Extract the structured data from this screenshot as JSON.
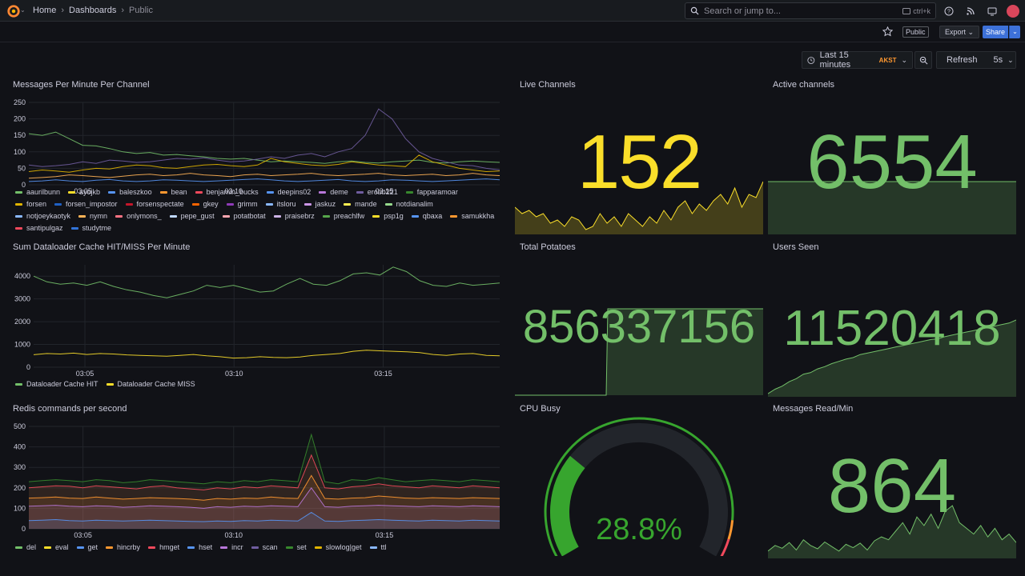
{
  "breadcrumbs": {
    "home": "Home",
    "dashboards": "Dashboards",
    "current": "Public"
  },
  "search": {
    "placeholder": "Search or jump to...",
    "shortcut": "ctrl+k"
  },
  "toolbar": {
    "public_badge": "Public",
    "export_label": "Export",
    "share_label": "Share"
  },
  "timepicker": {
    "range": "Last 15 minutes",
    "timezone": "AKST",
    "refresh_label": "Refresh",
    "interval": "5s"
  },
  "colors": {
    "green": "#73bf69",
    "yellow": "#fade2a",
    "bg": "#111217"
  },
  "panels": {
    "messages": {
      "title": "Messages Per Minute Per Channel"
    },
    "live": {
      "title": "Live Channels",
      "value": "152"
    },
    "active": {
      "title": "Active channels",
      "value": "6554"
    },
    "dataloader": {
      "title": "Sum Dataloader Cache HIT/MISS Per Minute"
    },
    "potatoes": {
      "title": "Total Potatoes",
      "value": "856337156"
    },
    "users": {
      "title": "Users Seen",
      "value": "11520418"
    },
    "redis": {
      "title": "Redis commands per second"
    },
    "cpu": {
      "title": "CPU Busy",
      "value": "28.8%",
      "fraction": 0.288
    },
    "readmin": {
      "title": "Messages Read/Min",
      "value": "864"
    }
  },
  "chart_data": [
    {
      "type": "line",
      "id": "messages",
      "title": "Messages Per Minute Per Channel",
      "xticks": [
        "03:05",
        "03:10",
        "03:15"
      ],
      "yticks": [
        0,
        50,
        100,
        150,
        200,
        250
      ],
      "ylim": [
        0,
        250
      ],
      "legend": [
        "aaurilbunn",
        "ayojkb",
        "baleszkoo",
        "bean",
        "benjamin_bucks",
        "deepins02",
        "deme",
        "erobb221",
        "fapparamoar",
        "forsen",
        "forsen_impostor",
        "forsenspectate",
        "gkey",
        "grimm",
        "itsloru",
        "jaskuz",
        "mande",
        "notdianalim",
        "notjoeykaotyk",
        "nymn",
        "onlymons_",
        "pepe_gust",
        "potatbotat",
        "praisebrz",
        "preachlfw",
        "psp1g",
        "qbaxa",
        "samukkha",
        "santipulgaz",
        "studytme"
      ],
      "legend_colors": [
        "#73bf69",
        "#fade2a",
        "#5794f2",
        "#ff9830",
        "#f2495c",
        "#5794f2",
        "#b877d9",
        "#705da0",
        "#37872d",
        "#e0b400",
        "#1f60c4",
        "#c4162a",
        "#fa6400",
        "#8f3bb8",
        "#8ab8ff",
        "#ca95e5",
        "#ffee52",
        "#96d98d",
        "#8ab8ff",
        "#ffb357",
        "#ff7383",
        "#c0d8ff",
        "#ffa6b0",
        "#cdb3e6",
        "#56a64b",
        "#fade2a",
        "#5794f2",
        "#ff9830",
        "#f2495c",
        "#3274d9"
      ],
      "series": [
        {
          "name": "aaurilbunn",
          "values": [
            155,
            150,
            160,
            140,
            120,
            118,
            110,
            100,
            95,
            98,
            90,
            92,
            88,
            85,
            80,
            78,
            80,
            75,
            70,
            72,
            70,
            68,
            65,
            70,
            72,
            68,
            66,
            70,
            72,
            75,
            68,
            66,
            70,
            72,
            70,
            68
          ]
        },
        {
          "name": "erobb221",
          "values": [
            60,
            55,
            58,
            62,
            70,
            65,
            75,
            72,
            68,
            70,
            75,
            80,
            78,
            82,
            75,
            70,
            72,
            78,
            85,
            80,
            90,
            95,
            85,
            100,
            110,
            150,
            230,
            200,
            140,
            100,
            80,
            70,
            60,
            58,
            50,
            45
          ]
        },
        {
          "name": "forsen",
          "values": [
            40,
            45,
            42,
            38,
            45,
            50,
            48,
            55,
            60,
            58,
            52,
            50,
            55,
            60,
            62,
            58,
            55,
            60,
            80,
            70,
            65,
            60,
            58,
            62,
            70,
            65,
            60,
            58,
            55,
            90,
            70,
            60,
            50,
            45,
            40,
            42
          ]
        },
        {
          "name": "nymn",
          "values": [
            20,
            22,
            25,
            30,
            28,
            25,
            22,
            26,
            30,
            32,
            28,
            30,
            35,
            30,
            28,
            25,
            30,
            32,
            28,
            30,
            32,
            35,
            30,
            28,
            30,
            32,
            35,
            30,
            28,
            30,
            32,
            28,
            30,
            35,
            30,
            28
          ]
        },
        {
          "name": "baleszkoo",
          "values": [
            10,
            12,
            15,
            12,
            10,
            14,
            16,
            12,
            10,
            12,
            15,
            14,
            12,
            10,
            12,
            14,
            16,
            18,
            15,
            12,
            10,
            12,
            14,
            16,
            12,
            10,
            12,
            15,
            14,
            12,
            10,
            12,
            14,
            16,
            18,
            15
          ]
        }
      ]
    },
    {
      "type": "sparkline",
      "id": "live",
      "color": "#fade2a",
      "values": [
        40,
        30,
        35,
        25,
        30,
        15,
        20,
        10,
        25,
        20,
        5,
        10,
        30,
        15,
        25,
        10,
        30,
        20,
        10,
        25,
        15,
        35,
        20,
        40,
        50,
        30,
        45,
        35,
        50,
        60,
        45,
        70,
        40,
        60,
        55,
        80
      ]
    },
    {
      "type": "sparkline",
      "id": "active",
      "color": "#73bf69",
      "values": [
        20,
        20,
        20,
        20,
        20,
        20,
        20,
        20,
        20,
        20,
        20,
        20,
        20,
        20,
        20,
        20,
        20,
        20,
        20,
        20,
        20,
        20,
        20,
        20,
        20,
        20,
        20,
        20,
        20,
        20,
        20,
        20,
        20,
        20,
        20,
        20
      ]
    },
    {
      "type": "line",
      "id": "dataloader",
      "title": "Sum Dataloader Cache HIT/MISS Per Minute",
      "xticks": [
        "03:05",
        "03:10",
        "03:15"
      ],
      "yticks": [
        0,
        1000,
        2000,
        3000,
        4000
      ],
      "ylim": [
        0,
        4500
      ],
      "legend": [
        "Dataloader Cache HIT",
        "Dataloader Cache MISS"
      ],
      "legend_colors": [
        "#73bf69",
        "#fade2a"
      ],
      "series": [
        {
          "name": "Dataloader Cache HIT",
          "values": [
            4000,
            3750,
            3650,
            3700,
            3600,
            3750,
            3550,
            3400,
            3300,
            3150,
            3050,
            3200,
            3350,
            3600,
            3500,
            3600,
            3450,
            3300,
            3350,
            3650,
            3900,
            3650,
            3600,
            3800,
            4100,
            4150,
            4050,
            4400,
            4200,
            3800,
            3600,
            3550,
            3700,
            3600,
            3650,
            3700
          ]
        },
        {
          "name": "Dataloader Cache MISS",
          "values": [
            550,
            600,
            580,
            620,
            560,
            600,
            580,
            540,
            520,
            500,
            480,
            520,
            560,
            500,
            460,
            400,
            420,
            460,
            430,
            420,
            450,
            520,
            560,
            600,
            700,
            750,
            720,
            700,
            680,
            640,
            560,
            520,
            580,
            600,
            520,
            500
          ]
        }
      ]
    },
    {
      "type": "sparkline",
      "id": "potatoes",
      "color": "#73bf69",
      "values": [
        0,
        0,
        0,
        0,
        0,
        0,
        0,
        0,
        0,
        0,
        0,
        0,
        0,
        0,
        0,
        0,
        0,
        0,
        0,
        0,
        0,
        0,
        0,
        0,
        0,
        0,
        0,
        0,
        0,
        0,
        0,
        0,
        0,
        0,
        0,
        0
      ]
    },
    {
      "type": "sparkline",
      "id": "users",
      "color": "#73bf69",
      "values": [
        2,
        8,
        12,
        18,
        22,
        28,
        30,
        35,
        38,
        42,
        45,
        48,
        50,
        54,
        56,
        58,
        60,
        62,
        64,
        66,
        68,
        70,
        72,
        74,
        75,
        78,
        80,
        82,
        84,
        86,
        88,
        90,
        92,
        94,
        96,
        100
      ]
    },
    {
      "type": "area",
      "id": "redis",
      "title": "Redis commands per second",
      "xticks": [
        "03:05",
        "03:10",
        "03:15"
      ],
      "yticks": [
        0,
        100,
        200,
        300,
        400,
        500
      ],
      "ylim": [
        0,
        500
      ],
      "legend": [
        "del",
        "eval",
        "get",
        "hincrby",
        "hmget",
        "hset",
        "incr",
        "scan",
        "set",
        "slowlog|get",
        "ttl"
      ],
      "legend_colors": [
        "#73bf69",
        "#fade2a",
        "#5794f2",
        "#ff9830",
        "#f2495c",
        "#5794f2",
        "#b877d9",
        "#705da0",
        "#37872d",
        "#e0b400",
        "#8ab8ff"
      ],
      "series": [
        {
          "name": "set",
          "values": [
            230,
            235,
            240,
            235,
            230,
            240,
            235,
            225,
            230,
            240,
            235,
            230,
            225,
            220,
            230,
            225,
            235,
            230,
            240,
            235,
            230,
            460,
            230,
            220,
            240,
            235,
            250,
            240,
            230,
            235,
            240,
            235,
            230,
            240,
            235,
            230
          ]
        },
        {
          "name": "hmget",
          "values": [
            200,
            205,
            210,
            208,
            200,
            210,
            205,
            200,
            195,
            205,
            210,
            200,
            195,
            190,
            200,
            195,
            205,
            200,
            210,
            205,
            200,
            360,
            200,
            195,
            205,
            210,
            220,
            210,
            205,
            200,
            210,
            205,
            200,
            210,
            205,
            200
          ]
        },
        {
          "name": "hincrby",
          "values": [
            150,
            152,
            155,
            150,
            148,
            155,
            150,
            145,
            148,
            152,
            150,
            148,
            145,
            140,
            148,
            145,
            150,
            148,
            155,
            150,
            148,
            260,
            148,
            145,
            150,
            152,
            160,
            155,
            150,
            148,
            152,
            150,
            148,
            152,
            150,
            148
          ]
        },
        {
          "name": "incr",
          "values": [
            110,
            112,
            115,
            110,
            108,
            112,
            110,
            105,
            108,
            112,
            110,
            108,
            105,
            100,
            108,
            105,
            110,
            108,
            112,
            110,
            108,
            200,
            108,
            105,
            110,
            112,
            115,
            112,
            110,
            108,
            112,
            110,
            108,
            112,
            110,
            108
          ]
        },
        {
          "name": "get",
          "values": [
            40,
            42,
            45,
            40,
            38,
            42,
            40,
            38,
            40,
            42,
            40,
            38,
            36,
            35,
            38,
            36,
            40,
            38,
            42,
            40,
            38,
            80,
            38,
            36,
            40,
            42,
            45,
            42,
            40,
            38,
            42,
            40,
            38,
            42,
            40,
            38
          ]
        }
      ]
    }
  ]
}
